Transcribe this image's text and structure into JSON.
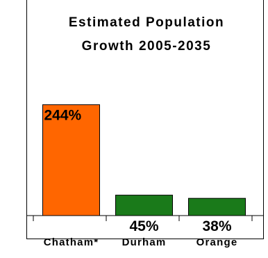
{
  "chart_data": {
    "type": "bar",
    "title": [
      "Estimated Population",
      "Growth 2005-2035"
    ],
    "categories": [
      "Chatham*",
      "Durham",
      "Orange"
    ],
    "values": [
      244,
      45,
      38
    ],
    "value_labels": [
      "244%",
      "45%",
      "38%"
    ],
    "colors": [
      "#ff6600",
      "#1a7a1a",
      "#1a7a1a"
    ],
    "xlabel": "",
    "ylabel": "",
    "ylim": [
      0,
      300
    ],
    "grid": false,
    "legend": "none"
  }
}
